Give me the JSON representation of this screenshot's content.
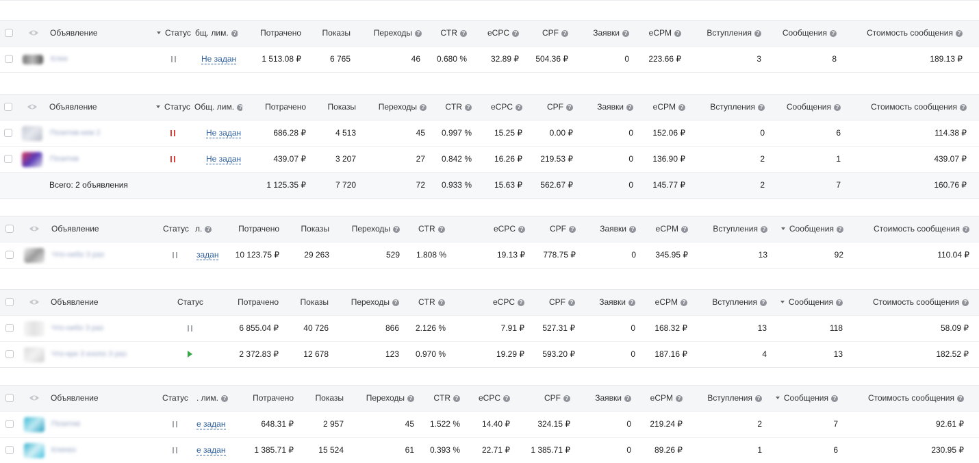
{
  "headers": {
    "ad": "Объявление",
    "status": "Статус",
    "limit_1": "бщ. лим.",
    "limit_2": "Общ. лим.",
    "limit_3": "л.",
    "limit_5": ". лим.",
    "spent": "Потрачено",
    "impressions": "Показы",
    "clicks": "Переходы",
    "ctr": "CTR",
    "ecpc": "eCPC",
    "cpf": "CPF",
    "requests": "Заявки",
    "ecpm": "eCPM",
    "joins": "Вступления",
    "messages": "Сообщения",
    "msg_cost": "Стоимость сообщения"
  },
  "limit_not_set": "Не задан",
  "limit_not_set_cut": "задан",
  "limit_not_set_cut2": "е задан",
  "tables": [
    {
      "rows": [
        {
          "name": "Клее",
          "status": "paused",
          "spent": "1 513.08 ₽",
          "impressions": "6 765",
          "clicks": "46",
          "ctr": "0.680 %",
          "ecpc": "32.89 ₽",
          "cpf": "504.36 ₽",
          "requests": "0",
          "ecpm": "223.66 ₽",
          "joins": "3",
          "messages": "8",
          "msg_cost": "189.13 ₽"
        }
      ]
    },
    {
      "rows": [
        {
          "name": "Позитив-кем 2",
          "status": "paused-red",
          "spent": "686.28 ₽",
          "impressions": "4 513",
          "clicks": "45",
          "ctr": "0.997 %",
          "ecpc": "15.25 ₽",
          "cpf": "0.00 ₽",
          "requests": "0",
          "ecpm": "152.06 ₽",
          "joins": "0",
          "messages": "6",
          "msg_cost": "114.38 ₽"
        },
        {
          "name": "Позитив",
          "status": "paused-red",
          "spent": "439.07 ₽",
          "impressions": "3 207",
          "clicks": "27",
          "ctr": "0.842 %",
          "ecpc": "16.26 ₽",
          "cpf": "219.53 ₽",
          "requests": "0",
          "ecpm": "136.90 ₽",
          "joins": "2",
          "messages": "1",
          "msg_cost": "439.07 ₽"
        }
      ],
      "total": {
        "label": "Всего: 2 объявления",
        "spent": "1 125.35 ₽",
        "impressions": "7 720",
        "clicks": "72",
        "ctr": "0.933 %",
        "ecpc": "15.63 ₽",
        "cpf": "562.67 ₽",
        "requests": "0",
        "ecpm": "145.77 ₽",
        "joins": "2",
        "messages": "7",
        "msg_cost": "160.76 ₽"
      }
    },
    {
      "rows": [
        {
          "name": "Что-нибо 3 раз",
          "status": "paused",
          "spent": "10 123.75 ₽",
          "impressions": "29 263",
          "clicks": "529",
          "ctr": "1.808 %",
          "ecpc": "19.13 ₽",
          "cpf": "778.75 ₽",
          "requests": "0",
          "ecpm": "345.95 ₽",
          "joins": "13",
          "messages": "92",
          "msg_cost": "110.04 ₽"
        }
      ]
    },
    {
      "rows": [
        {
          "name": "Что-нибо 3 раз",
          "status": "paused",
          "spent": "6 855.04 ₽",
          "impressions": "40 726",
          "clicks": "866",
          "ctr": "2.126 %",
          "ecpc": "7.91 ₽",
          "cpf": "527.31 ₽",
          "requests": "0",
          "ecpm": "168.32 ₽",
          "joins": "13",
          "messages": "118",
          "msg_cost": "58.09 ₽"
        },
        {
          "name": "Что-кре 3 кнопо 3 раз",
          "status": "running",
          "spent": "2 372.83 ₽",
          "impressions": "12 678",
          "clicks": "123",
          "ctr": "0.970 %",
          "ecpc": "19.29 ₽",
          "cpf": "593.20 ₽",
          "requests": "0",
          "ecpm": "187.16 ₽",
          "joins": "4",
          "messages": "13",
          "msg_cost": "182.52 ₽"
        }
      ]
    },
    {
      "rows": [
        {
          "name": "Позитив",
          "status": "paused",
          "spent": "648.31 ₽",
          "impressions": "2 957",
          "clicks": "45",
          "ctr": "1.522 %",
          "ecpc": "14.40 ₽",
          "cpf": "324.15 ₽",
          "requests": "0",
          "ecpm": "219.24 ₽",
          "joins": "2",
          "messages": "7",
          "msg_cost": "92.61 ₽"
        },
        {
          "name": "Клинко",
          "status": "paused",
          "spent": "1 385.71 ₽",
          "impressions": "15 524",
          "clicks": "61",
          "ctr": "0.393 %",
          "ecpc": "22.71 ₽",
          "cpf": "1 385.71 ₽",
          "requests": "0",
          "ecpm": "89.26 ₽",
          "joins": "1",
          "messages": "6",
          "msg_cost": "230.95 ₽"
        }
      ]
    }
  ]
}
